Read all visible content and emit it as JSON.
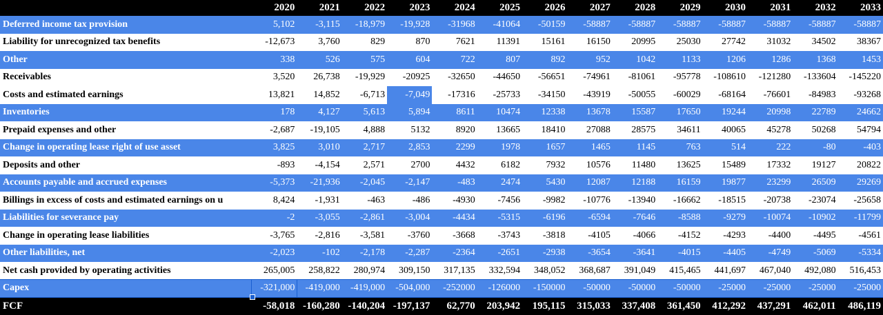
{
  "years": [
    "2020",
    "2021",
    "2022",
    "2023",
    "2024",
    "2025",
    "2026",
    "2027",
    "2028",
    "2029",
    "2030",
    "2031",
    "2032",
    "2033"
  ],
  "rows": [
    {
      "label": "Deferred income tax provision",
      "style": "blue",
      "values": [
        "5,102",
        "-3,115",
        "-18,979",
        "-19,928",
        "-31968",
        "-41064",
        "-50159",
        "-58887",
        "-58887",
        "-58887",
        "-58887",
        "-58887",
        "-58887",
        "-58887"
      ]
    },
    {
      "label": "Liability for unrecognized tax benefits",
      "style": "white",
      "values": [
        "-12,673",
        "3,760",
        "829",
        "870",
        "7621",
        "11391",
        "15161",
        "16150",
        "20995",
        "25030",
        "27742",
        "31032",
        "34502",
        "38367"
      ]
    },
    {
      "label": "Other",
      "style": "blue",
      "values": [
        "338",
        "526",
        "575",
        "604",
        "722",
        "807",
        "892",
        "952",
        "1042",
        "1133",
        "1206",
        "1286",
        "1368",
        "1453"
      ]
    },
    {
      "label": "Receivables",
      "style": "white",
      "values": [
        "3,520",
        "26,738",
        "-19,929",
        "-20925",
        "-32650",
        "-44650",
        "-56651",
        "-74961",
        "-81061",
        "-95778",
        "-108610",
        "-121280",
        "-133604",
        "-145220"
      ]
    },
    {
      "label": "Costs and estimated earnings",
      "style": "white",
      "values": [
        "13,821",
        "14,852",
        "-6,713",
        "-7,049",
        "-17316",
        "-25733",
        "-34150",
        "-43919",
        "-50055",
        "-60029",
        "-68164",
        "-76601",
        "-84983",
        "-93268"
      ]
    },
    {
      "label": "Inventories",
      "style": "blue",
      "values": [
        "178",
        "4,127",
        "5,613",
        "5,894",
        "8611",
        "10474",
        "12338",
        "13678",
        "15587",
        "17650",
        "19244",
        "20998",
        "22789",
        "24662"
      ]
    },
    {
      "label": "Prepaid expenses and other",
      "style": "white",
      "values": [
        "-2,687",
        "-19,105",
        "4,888",
        "5132",
        "8920",
        "13665",
        "18410",
        "27088",
        "28575",
        "34611",
        "40065",
        "45278",
        "50268",
        "54794"
      ]
    },
    {
      "label": "Change in operating lease right of use asset",
      "style": "blue",
      "values": [
        "3,825",
        "3,010",
        "2,717",
        "2,853",
        "2299",
        "1978",
        "1657",
        "1465",
        "1145",
        "763",
        "514",
        "222",
        "-80",
        "-403"
      ]
    },
    {
      "label": "Deposits and other",
      "style": "white",
      "values": [
        "-893",
        "-4,154",
        "2,571",
        "2700",
        "4432",
        "6182",
        "7932",
        "10576",
        "11480",
        "13625",
        "15489",
        "17332",
        "19127",
        "20822"
      ]
    },
    {
      "label": "Accounts payable and accrued expenses",
      "style": "blue",
      "values": [
        "-5,373",
        "-21,936",
        "-2,045",
        "-2,147",
        "-483",
        "2474",
        "5430",
        "12087",
        "12188",
        "16159",
        "19877",
        "23299",
        "26509",
        "29269"
      ]
    },
    {
      "label": "Billings in excess of costs and estimated earnings on u",
      "style": "white",
      "values": [
        "8,424",
        "-1,931",
        "-463",
        "-486",
        "-4930",
        "-7456",
        "-9982",
        "-10776",
        "-13940",
        "-16662",
        "-18515",
        "-20738",
        "-23074",
        "-25658"
      ]
    },
    {
      "label": "Liabilities for severance pay",
      "style": "blue",
      "values": [
        "-2",
        "-3,055",
        "-2,861",
        "-3,004",
        "-4434",
        "-5315",
        "-6196",
        "-6594",
        "-7646",
        "-8588",
        "-9279",
        "-10074",
        "-10902",
        "-11799"
      ]
    },
    {
      "label": "Change in operating lease liabilities",
      "style": "white",
      "values": [
        "-3,765",
        "-2,816",
        "-3,581",
        "-3760",
        "-3668",
        "-3743",
        "-3818",
        "-4105",
        "-4066",
        "-4152",
        "-4293",
        "-4400",
        "-4495",
        "-4561"
      ]
    },
    {
      "label": "Other liabilities, net",
      "style": "blue",
      "values": [
        "-2,023",
        "-102",
        "-2,178",
        "-2,287",
        "-2364",
        "-2651",
        "-2938",
        "-3654",
        "-3641",
        "-4015",
        "-4405",
        "-4749",
        "-5069",
        "-5334"
      ]
    },
    {
      "label": "Net cash provided by operating activities",
      "style": "white",
      "values": [
        "265,005",
        "258,822",
        "280,974",
        "309,150",
        "317,135",
        "332,594",
        "348,052",
        "368,687",
        "391,049",
        "415,465",
        "441,697",
        "467,040",
        "492,080",
        "516,453"
      ]
    },
    {
      "label": "Capex",
      "style": "blue",
      "values": [
        "-321,000",
        "-419,000",
        "-419,000",
        "-504,000",
        "-252000",
        "-126000",
        "-150000",
        "-50000",
        "-50000",
        "-50000",
        "-25000",
        "-25000",
        "-25000",
        "-25000"
      ]
    },
    {
      "label": "FCF",
      "style": "black",
      "values": [
        "-58,018",
        "-160,280",
        "-140,204",
        "-197,137",
        "62,770",
        "203,942",
        "195,115",
        "315,033",
        "337,408",
        "361,450",
        "412,292",
        "437,291",
        "462,011",
        "486,119"
      ]
    }
  ],
  "colors": {
    "blue_row": "#4a86e8",
    "header": "#000000",
    "selection": "#1a5fd0"
  }
}
